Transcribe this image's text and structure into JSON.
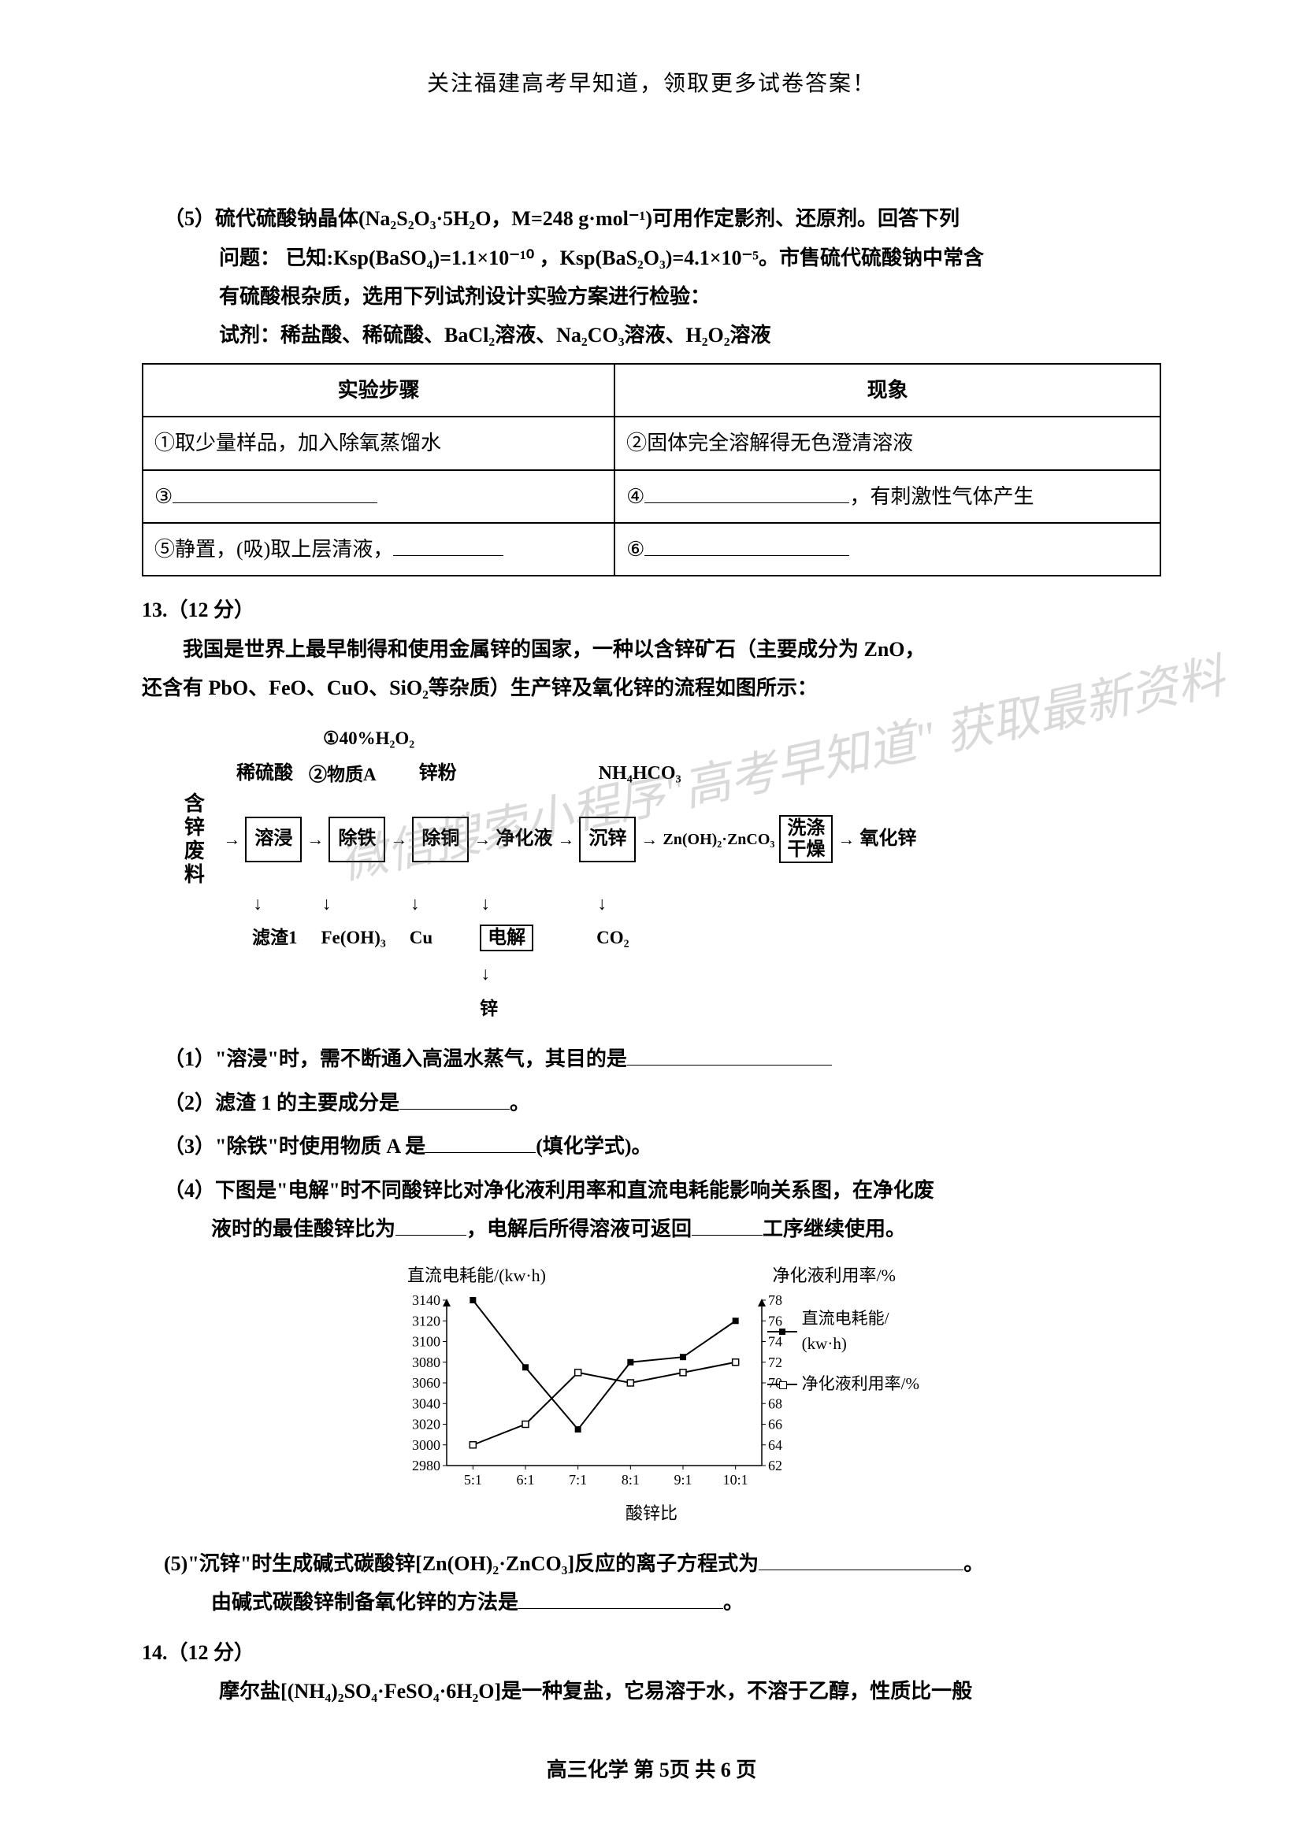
{
  "header": "关注福建高考早知道，领取更多试卷答案！",
  "q5": {
    "line1": "（5）硫代硫酸钠晶体(Na₂S₂O₃·5H₂O，M=248 g·mol⁻¹)可用作定影剂、还原剂。回答下列",
    "line2": "问题：  已知:Ksp(BaSO₄)=1.1×10⁻¹⁰ ，Ksp(BaS₂O₃)=4.1×10⁻⁵。市售硫代硫酸钠中常含",
    "line3": "有硫酸根杂质，选用下列试剂设计实验方案进行检验：",
    "line4": "试剂：稀盐酸、稀硫酸、BaCl₂溶液、Na₂CO₃溶液、H₂O₂溶液"
  },
  "table": {
    "h1": "实验步骤",
    "h2": "现象",
    "r1c1": "①取少量样品，加入除氧蒸馏水",
    "r1c2": "②固体完全溶解得无色澄清溶液",
    "r2c1pre": "③",
    "r2c2pre": "④",
    "r2c2suf": "，有刺激性气体产生",
    "r3c1pre": "⑤静置，(吸)取上层清液，",
    "r3c2pre": "⑥"
  },
  "q13": {
    "num": "13.（12 分）",
    "p1": "我国是世界上最早制得和使用金属锌的国家，一种以含锌矿石（主要成分为 ZnO，",
    "p2": "还含有 PbO、FeO、CuO、SiO₂等杂质）生产锌及氧化锌的流程如图所示："
  },
  "flow": {
    "top1": "①40%H₂O₂",
    "top2": "②物质A",
    "vleft": "含锌废料",
    "lab_xihs": "稀硫酸",
    "lab_zinc": "锌粉",
    "lab_nh4": "NH₄HCO₃",
    "box_rj": "溶浸",
    "box_ct": "除铁",
    "box_ctg": "除铜",
    "lab_jhy": "净化液",
    "box_cx": "沉锌",
    "lab_zn2": "Zn(OH)₂·ZnCO₃",
    "box_xd": "洗涤\n干燥",
    "lab_yhx": "氧化锌",
    "below_lz": "滤渣1",
    "below_fe": "Fe(OH)₃",
    "below_cu": "Cu",
    "box_dj": "电解",
    "below_co2": "CO₂",
    "below_zn": "锌"
  },
  "watermark": "微信搜索小程序\"高考早知道\"\n获取最新资料",
  "q13sub": {
    "s1": "（1）\"溶浸\"时，需不断通入高温水蒸气，其目的是",
    "s2": "（2）滤渣 1 的主要成分是",
    "s2suf": "。",
    "s3": "（3）\"除铁\"时使用物质 A 是",
    "s3suf": "(填化学式)。",
    "s4a": "（4）下图是\"电解\"时不同酸锌比对净化液利用率和直流电耗能影响关系图，在净化废",
    "s4b": "液时的最佳酸锌比为",
    "s4c": "，电解后所得溶液可返回",
    "s4d": "工序继续使用。"
  },
  "chart": {
    "title_left": "直流电耗能/(kw·h)",
    "title_right": "净化液利用率/%",
    "y_left": [
      3140,
      3120,
      3100,
      3080,
      3060,
      3040,
      3020,
      3000,
      2980
    ],
    "y_right": [
      78,
      76,
      74,
      72,
      70,
      68,
      66,
      64,
      62
    ],
    "x_labels": [
      "5:1",
      "6:1",
      "7:1",
      "8:1",
      "9:1",
      "10:1"
    ],
    "x_axis_label": "酸锌比",
    "series_consumption": [
      3140,
      3075,
      3015,
      3080,
      3085,
      3120
    ],
    "series_utilization": [
      64,
      66,
      71,
      70,
      71,
      72
    ],
    "legend1": "直流电耗能/",
    "legend1b": "(kw·h)",
    "legend2": "净化液利用率/%",
    "color": "#000000",
    "bg": "#ffffff"
  },
  "q13s5": {
    "a": "(5)\"沉锌\"时生成碱式碳酸锌[Zn(OH)₂·ZnCO₃]反应的离子方程式为",
    "asuf": "。",
    "b": "由碱式碳酸锌制备氧化锌的方法是",
    "bsuf": "。"
  },
  "q14": {
    "num": "14.（12 分）",
    "p": "摩尔盐[(NH₄)₂SO₄·FeSO₄·6H₂O]是一种复盐，它易溶于水，不溶于乙醇，性质比一般"
  },
  "footer": "高三化学  第 5页  共 6 页"
}
